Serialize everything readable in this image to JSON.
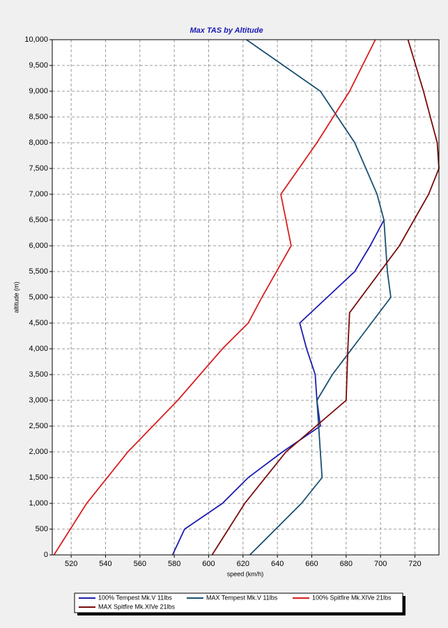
{
  "chart_data": {
    "type": "line",
    "title": "Max TAS by Altitude",
    "x_label": "speed (km/h)",
    "y_label": "altitude (m)",
    "xlim": [
      509,
      734
    ],
    "ylim": [
      0,
      10000
    ],
    "xticks": [
      520,
      540,
      560,
      580,
      600,
      620,
      640,
      660,
      680,
      700,
      720
    ],
    "yticks": [
      0,
      500,
      {
        "value": 1000,
        "label": "1,000"
      },
      {
        "value": 1500,
        "label": "1,500"
      },
      {
        "value": 2000,
        "label": "2,000"
      },
      {
        "value": 2500,
        "label": "2,500"
      },
      {
        "value": 3000,
        "label": "3,000"
      },
      {
        "value": 3500,
        "label": "3,500"
      },
      {
        "value": 4000,
        "label": "4,000"
      },
      {
        "value": 4500,
        "label": "4,500"
      },
      {
        "value": 5000,
        "label": "5,000"
      },
      {
        "value": 5500,
        "label": "5,500"
      },
      {
        "value": 6000,
        "label": "6,000"
      },
      {
        "value": 6500,
        "label": "6,500"
      },
      {
        "value": 7000,
        "label": "7,000"
      },
      {
        "value": 7500,
        "label": "7,500"
      },
      {
        "value": 8000,
        "label": "8,000"
      },
      {
        "value": 8500,
        "label": "8,500"
      },
      {
        "value": 9000,
        "label": "9,000"
      },
      {
        "value": 9500,
        "label": "9,500"
      },
      {
        "value": 10000,
        "label": "10,000"
      }
    ],
    "grid": true,
    "series": [
      {
        "name": "100% Tempest Mk.V 11lbs",
        "color": "#1c1cb0",
        "x": [
          579,
          586,
          608,
          623,
          643,
          665,
          663,
          662,
          657,
          653,
          669,
          685,
          694,
          702
        ],
        "values": [
          0,
          500,
          1000,
          1500,
          2000,
          2500,
          3000,
          3500,
          4000,
          4500,
          5000,
          5500,
          6000,
          6500
        ]
      },
      {
        "name": "MAX Tempest Mk.V 11lbs",
        "color": "#1a5070",
        "x": [
          624,
          654,
          666,
          663,
          672,
          706,
          704,
          702,
          698,
          685,
          665,
          622
        ],
        "values": [
          0,
          1000,
          1500,
          3000,
          3500,
          5000,
          5500,
          6500,
          7000,
          8000,
          9000,
          10000
        ]
      },
      {
        "name": "100% Spitfire Mk.XIVe 21lbs",
        "color": "#d81e1e",
        "x": [
          510,
          529,
          553,
          582,
          608,
          623,
          631,
          648,
          642,
          663,
          682,
          697
        ],
        "values": [
          0,
          1000,
          2000,
          3000,
          4000,
          4500,
          5000,
          6000,
          7000,
          8000,
          9000,
          10000
        ]
      },
      {
        "name": "MAX Spitfire Mk.XIVe 21lbs",
        "color": "#7a0a0a",
        "x": [
          602,
          621,
          645,
          680,
          681,
          682,
          711,
          728,
          734,
          733,
          725,
          716
        ],
        "values": [
          0,
          1000,
          2000,
          3000,
          4000,
          4700,
          6000,
          7000,
          7500,
          8000,
          9000,
          10000
        ]
      }
    ]
  }
}
